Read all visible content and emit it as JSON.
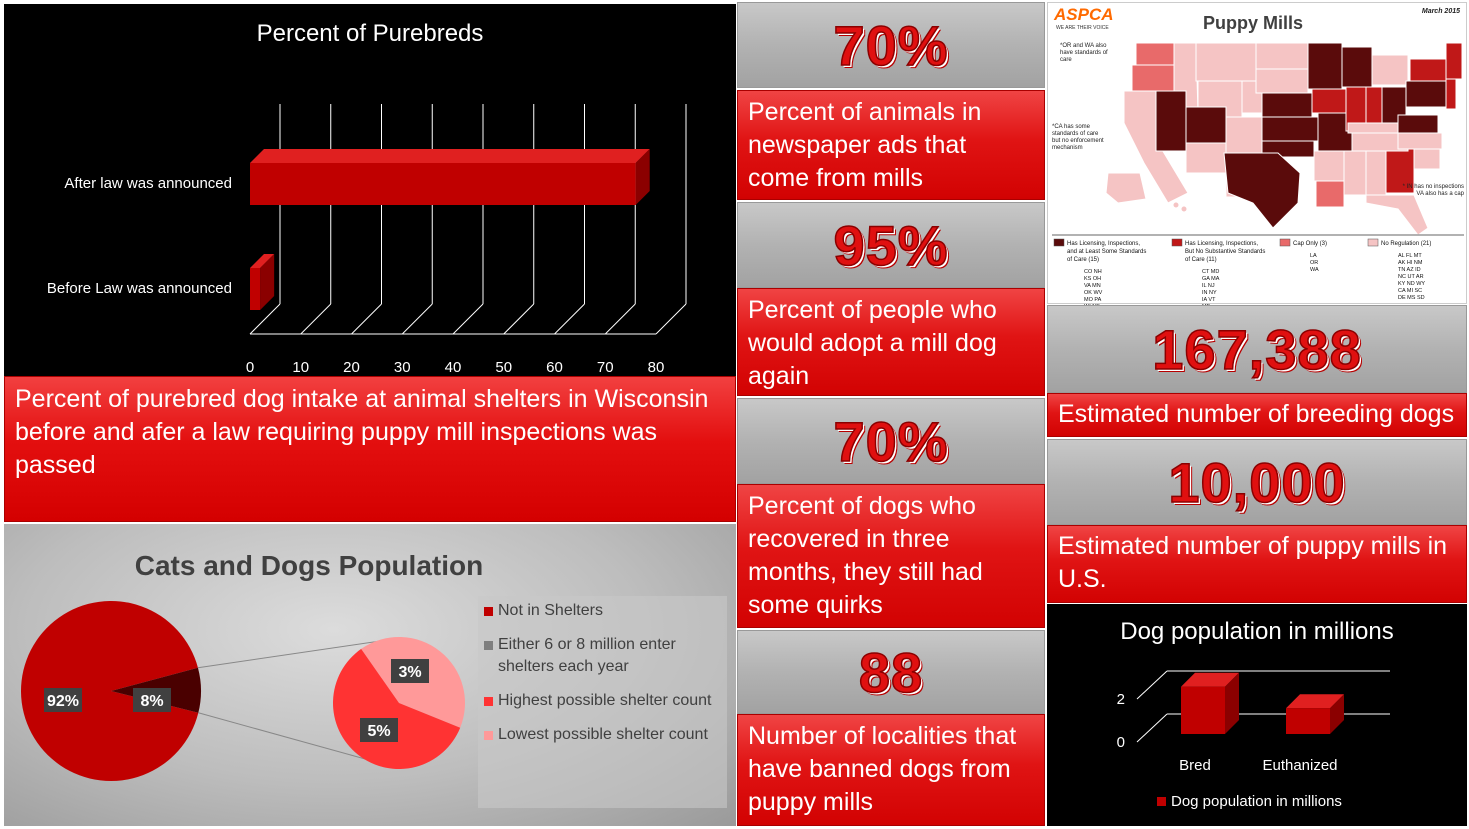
{
  "bar_chart": {
    "title": "Percent of Purebreds",
    "categories": [
      "After law was announced",
      "Before Law was announced"
    ],
    "values": [
      76,
      2
    ],
    "ticks": [
      "0",
      "10",
      "20",
      "30",
      "40",
      "50",
      "60",
      "70",
      "80"
    ],
    "xlim": [
      0,
      80
    ]
  },
  "bar_description": "Percent of purebred dog intake at animal shelters in Wisconsin before and afer a law requiring puppy mill inspections was passed",
  "pie_chart": {
    "title": "Cats and Dogs Population",
    "main_labels": [
      "92%",
      "8%"
    ],
    "sub_labels": [
      "3%",
      "5%"
    ],
    "legend": [
      {
        "label": "Not in Shelters",
        "color": "#c00000"
      },
      {
        "label": "Either 6 or 8 million enter shelters each year",
        "color": "#7f7f7f"
      },
      {
        "label": "Highest possible shelter count",
        "color": "#ff3333"
      },
      {
        "label": "Lowest possible shelter count",
        "color": "#ff9999"
      }
    ]
  },
  "stats": [
    {
      "value": "70%",
      "text": "Percent of animals in newspaper ads that come from mills"
    },
    {
      "value": "95%",
      "text": "Percent of people who would adopt a mill dog again"
    },
    {
      "value": "70%",
      "text": "Percent of dogs who recovered in three months, they still had some quirks"
    },
    {
      "value": "88",
      "text": "Number of localities that have banned dogs from puppy mills"
    }
  ],
  "right_stats": [
    {
      "value": "167,388",
      "text": "Estimated number of breeding dogs"
    },
    {
      "value": "10,000",
      "text": "Estimated number of puppy mills in U.S."
    }
  ],
  "map": {
    "logo": "ASPCA",
    "tagline": "WE ARE THEIR VOICE",
    "title": "Puppy Mills",
    "date": "March 2015",
    "note_or_wa": "*OR and WA also have standards of care",
    "note_ca": "*CA has some standards of care but no enforcement mechanism",
    "note_in_va": "* IN has no inspections VA also has a cap",
    "legend": [
      {
        "label": "Has Licensing, Inspections, and at Least Some Standards of Care (15)",
        "color": "#5a0b0b",
        "states": "CO NH KS OH VA MN OK WV MO PA WI NE RI NV TX"
      },
      {
        "label": "Has Licensing, Inspections, But No Substantive Standards of Care (11)",
        "color": "#c01818",
        "states": "CT MD GA MA IL NJ IN NY IA VT ME"
      },
      {
        "label": "Cap Only (3)",
        "color": "#e86a6a",
        "states": "LA OR WA"
      },
      {
        "label": "No Regulation (21)",
        "color": "#f5c4c4",
        "states": "AL FL MT AK HI NM TN AZ ID NC UT AR KY ND WY CA MI SC DE MS SD"
      }
    ]
  },
  "dog_chart": {
    "title": "Dog population in millions",
    "categories": [
      "Bred",
      "Euthanized"
    ],
    "values": [
      2.2,
      1.2
    ],
    "ticks": [
      "0",
      "2"
    ],
    "series_name": "Dog population in millions",
    "color": "#c00000"
  }
}
